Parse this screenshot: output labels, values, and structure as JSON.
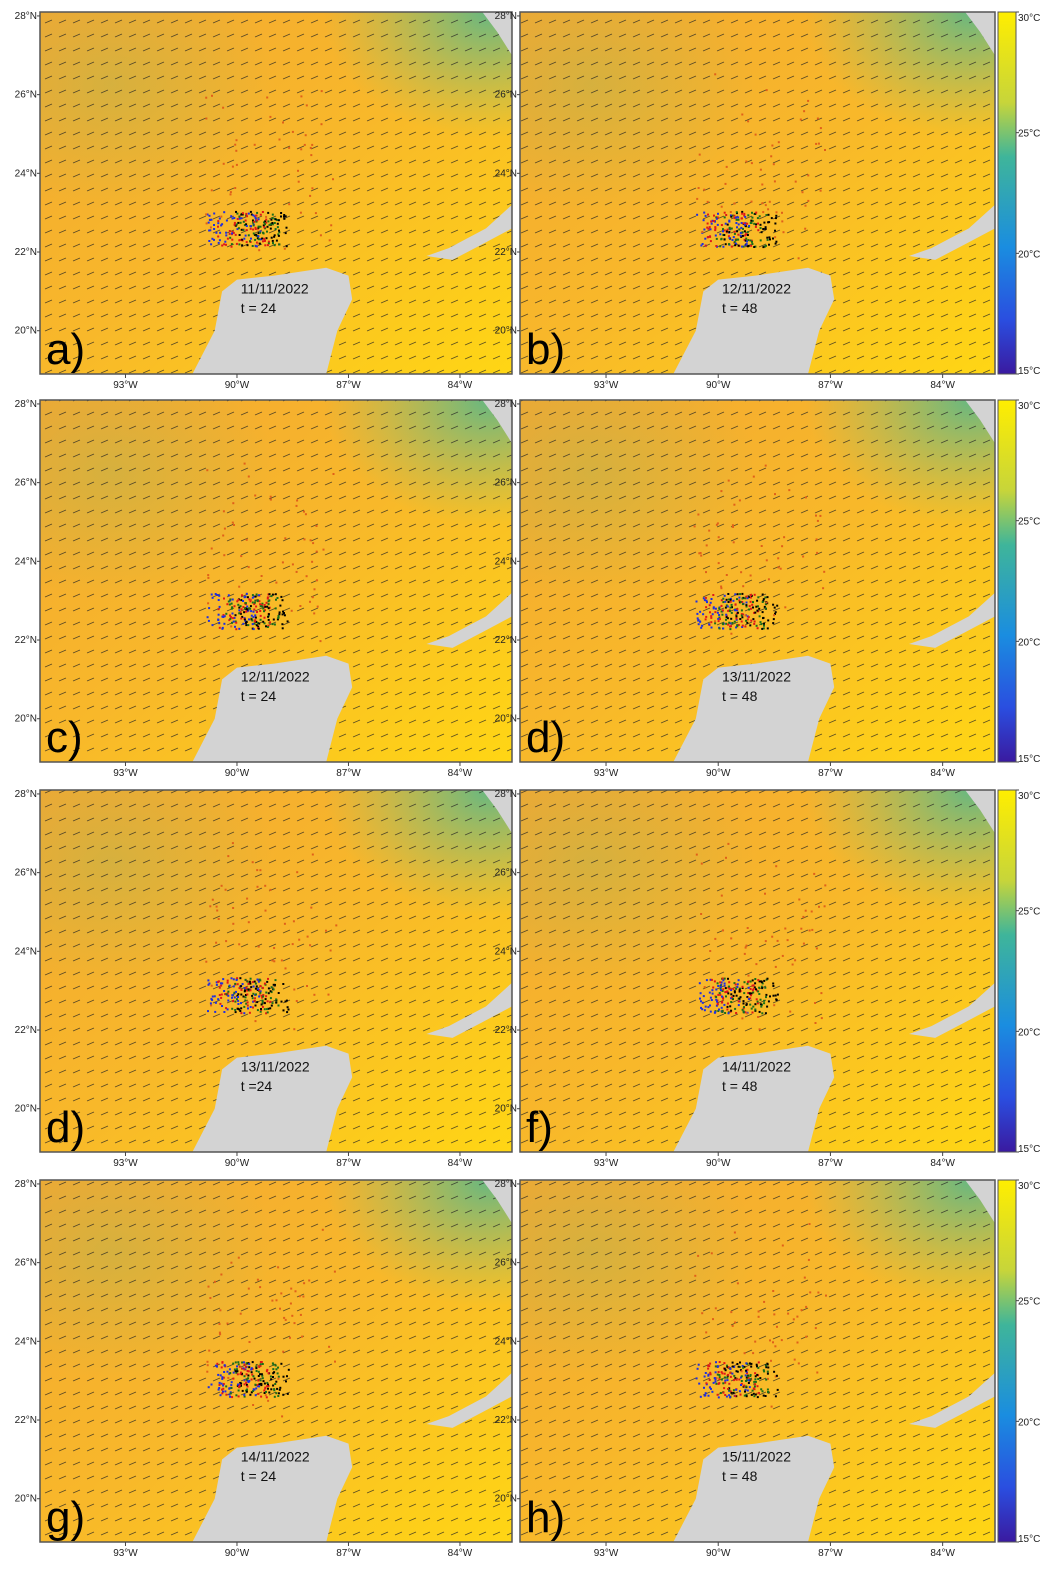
{
  "map": {
    "xlim": [
      -95.3,
      -82.6
    ],
    "ylim": [
      18.9,
      28.1
    ],
    "lat_ticks": [
      {
        "value": 28,
        "label": "28°N"
      },
      {
        "value": 26,
        "label": "26°N"
      },
      {
        "value": 24,
        "label": "24°N"
      },
      {
        "value": 22,
        "label": "22°N"
      },
      {
        "value": 20,
        "label": "20°N"
      }
    ],
    "lon_ticks": [
      {
        "value": -93,
        "label": "93°W"
      },
      {
        "value": -90,
        "label": "90°W"
      },
      {
        "value": -87,
        "label": "87°W"
      },
      {
        "value": -84,
        "label": "84°W"
      }
    ],
    "colorbar": {
      "lim": [
        15,
        30
      ],
      "ticks": [
        {
          "value": 30,
          "label": "30°C"
        },
        {
          "value": 25,
          "label": "25°C"
        },
        {
          "value": 20,
          "label": "20°C"
        },
        {
          "value": 15,
          "label": "15°C"
        }
      ]
    },
    "panels": [
      {
        "letter": "a)",
        "date": "11/11/2022",
        "time": "t = 24"
      },
      {
        "letter": "b)",
        "date": "12/11/2022",
        "time": "t = 48"
      },
      {
        "letter": "c)",
        "date": "12/11/2022",
        "time": "t = 24"
      },
      {
        "letter": "d)",
        "date": "13/11/2022",
        "time": "t = 48"
      },
      {
        "letter": "d)",
        "date": "13/11/2022",
        "time": "t =24"
      },
      {
        "letter": "f)",
        "date": "14/11/2022",
        "time": "t = 48"
      },
      {
        "letter": "g)",
        "date": "14/11/2022",
        "time": "t = 24"
      },
      {
        "letter": "h)",
        "date": "15/11/2022",
        "time": "t = 48"
      }
    ]
  }
}
